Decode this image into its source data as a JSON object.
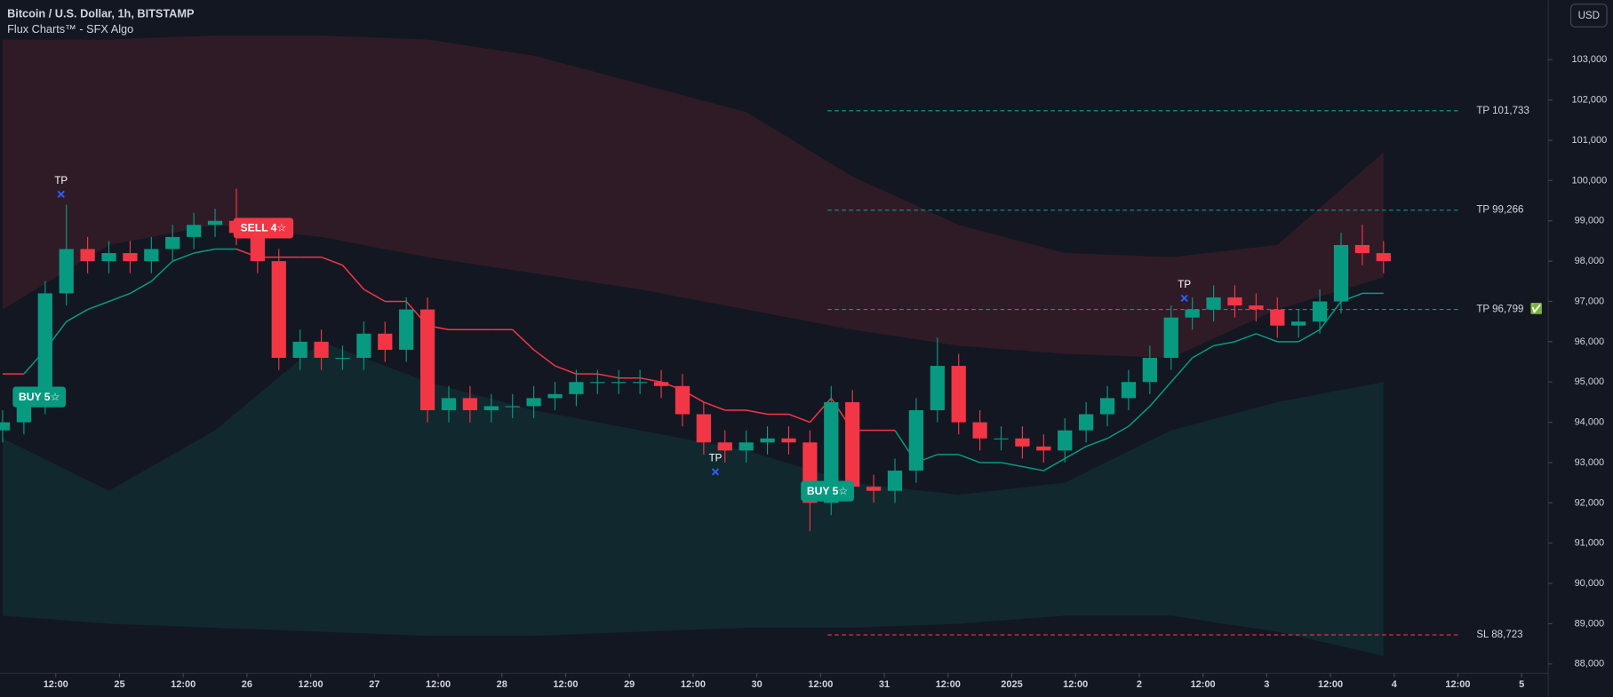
{
  "chart_data": {
    "type": "candlestick",
    "title": "Bitcoin / U.S. Dollar, 1h, BITSTAMP",
    "subtitle": "Flux Charts™ - SFX Algo",
    "currency": "USD",
    "up_color": "#089981",
    "down_color": "#f23645",
    "x": [
      -10,
      -6,
      -2,
      2,
      6,
      10,
      14,
      18,
      22,
      26,
      30,
      34,
      38,
      42,
      46,
      50,
      54,
      58,
      62,
      66,
      70,
      74,
      78,
      82,
      86,
      90,
      94,
      98,
      102,
      106,
      110,
      114,
      118,
      122,
      126,
      130,
      134,
      138,
      142,
      146,
      150,
      154,
      158,
      162,
      166,
      170,
      174,
      178,
      182,
      186,
      190,
      194,
      198,
      202,
      206,
      210,
      214,
      218,
      222,
      226,
      230,
      234,
      238,
      242,
      246,
      250
    ],
    "open": [
      93800,
      94000,
      94500,
      97200,
      98300,
      98000,
      98200,
      98000,
      98300,
      98600,
      98900,
      99000,
      98700,
      98000,
      95600,
      96000,
      95600,
      95600,
      96200,
      95800,
      96800,
      94300,
      94600,
      94300,
      94400,
      94400,
      94600,
      94700,
      95000,
      95000,
      95000,
      95000,
      94900,
      94200,
      93500,
      93300,
      93500,
      93600,
      93500,
      92000,
      94500,
      92400,
      92300,
      92800,
      94300,
      95400,
      94000,
      93600,
      93600,
      93400,
      93300,
      93800,
      94200,
      94600,
      95000,
      95600,
      96600,
      96800,
      97100,
      96900,
      96800,
      96400,
      96500,
      97000,
      98400,
      98200
    ],
    "high": [
      94300,
      94800,
      97500,
      99400,
      98600,
      98500,
      98500,
      98600,
      98900,
      99200,
      99300,
      99800,
      99000,
      98300,
      96300,
      96300,
      95900,
      96500,
      96500,
      97100,
      97100,
      94900,
      94900,
      94700,
      94700,
      94900,
      95000,
      95300,
      95300,
      95300,
      95300,
      95300,
      95200,
      94500,
      93800,
      93800,
      93900,
      93900,
      93800,
      94900,
      94800,
      92700,
      93100,
      94600,
      96100,
      95700,
      94300,
      93900,
      93900,
      93700,
      94100,
      94500,
      94900,
      95300,
      95900,
      96900,
      97100,
      97400,
      97400,
      97200,
      97100,
      96800,
      97300,
      98700,
      98900,
      98500
    ],
    "low": [
      93500,
      93700,
      94200,
      96900,
      97700,
      97700,
      97700,
      97700,
      98000,
      98300,
      98600,
      98400,
      97700,
      95300,
      95300,
      95300,
      95300,
      95300,
      95500,
      95500,
      94000,
      94000,
      94000,
      94000,
      94100,
      94100,
      94300,
      94400,
      94700,
      94700,
      94700,
      94600,
      93900,
      93200,
      93000,
      93000,
      93200,
      93200,
      91300,
      91700,
      92100,
      92000,
      92000,
      92500,
      94000,
      93700,
      93300,
      93300,
      93100,
      93000,
      93000,
      93500,
      93900,
      94300,
      94700,
      95300,
      96300,
      96500,
      96600,
      96500,
      96100,
      96100,
      96200,
      96700,
      97900,
      97700
    ],
    "close": [
      94000,
      94500,
      97200,
      98300,
      98000,
      98200,
      98000,
      98300,
      98600,
      98900,
      99000,
      98700,
      98000,
      95600,
      96000,
      95600,
      95600,
      96200,
      95800,
      96800,
      94300,
      94600,
      94300,
      94400,
      94400,
      94600,
      94700,
      95000,
      95000,
      95000,
      95000,
      94900,
      94200,
      93500,
      93300,
      93500,
      93600,
      93500,
      92000,
      94500,
      92400,
      92300,
      92800,
      94300,
      95400,
      94000,
      93600,
      93600,
      93400,
      93300,
      93800,
      94200,
      94600,
      95000,
      95600,
      96600,
      96800,
      97100,
      96900,
      96800,
      96400,
      96500,
      97000,
      98400,
      98200,
      98000
    ],
    "trail": [
      95200,
      95200,
      95800,
      96500,
      96800,
      97000,
      97200,
      97500,
      98000,
      98200,
      98300,
      98300,
      98100,
      98100,
      98100,
      98100,
      97900,
      97300,
      97000,
      97000,
      96400,
      96300,
      96300,
      96300,
      96300,
      95800,
      95400,
      95200,
      95200,
      95100,
      95100,
      95000,
      94800,
      94500,
      94300,
      94300,
      94200,
      94200,
      94000,
      94600,
      93800,
      93800,
      93800,
      93000,
      93200,
      93200,
      93000,
      93000,
      92900,
      92800,
      93100,
      93400,
      93600,
      93900,
      94400,
      95000,
      95600,
      95900,
      96000,
      96200,
      96000,
      96000,
      96300,
      97000,
      97200,
      97200
    ],
    "band_x": [
      -10,
      10,
      30,
      50,
      70,
      90,
      110,
      130,
      150,
      170,
      190,
      210,
      230,
      250
    ],
    "bands": [
      {
        "color": "#f23645",
        "upper": [
          103500,
          103500,
          103600,
          103600,
          103500,
          103100,
          102400,
          101700,
          100100,
          98900,
          98200,
          98100,
          98400,
          100700
        ],
        "lower": [
          96800,
          98400,
          98900,
          98600,
          98100,
          97700,
          97300,
          96800,
          96300,
          95900,
          95700,
          95600,
          96800,
          97600
        ]
      },
      {
        "color": "#089981",
        "upper": [
          93600,
          92300,
          93800,
          96000,
          95000,
          94300,
          93800,
          93300,
          92500,
          92200,
          92500,
          93800,
          94500,
          95000
        ],
        "lower": [
          89200,
          89000,
          88900,
          88800,
          88700,
          88700,
          88800,
          88900,
          88900,
          89000,
          89200,
          89200,
          88800,
          88200
        ]
      }
    ],
    "signals": [
      {
        "label": "BUY 5☆",
        "x": -3.1,
        "price": 94630,
        "color": "#089981"
      },
      {
        "label": "SELL 4☆",
        "x": 39.1,
        "price": 98820,
        "color": "#f23645"
      },
      {
        "label": "BUY 5☆",
        "x": 145.3,
        "price": 92290,
        "color": "#089981"
      }
    ],
    "tp_marks": [
      {
        "label": "TP",
        "x": 1,
        "price": 99660
      },
      {
        "label": "TP",
        "x": 124.2,
        "price": 92770
      },
      {
        "label": "TP",
        "x": 212.5,
        "price": 97080
      }
    ],
    "level_x": [
      145.3,
      264
    ],
    "levels": [
      {
        "label": "TP 101,733",
        "value": 101733,
        "color": "#089981"
      },
      {
        "label": "TP 99,266",
        "value": 99266,
        "color": "#089981"
      },
      {
        "label": "TP 96,799",
        "value": 96799,
        "color": "#089981",
        "mark": "✅"
      },
      {
        "label": "SL 88,723",
        "value": 88723,
        "color": "#f23645"
      }
    ],
    "xlim": [
      -10.5,
      281
    ],
    "ylim": [
      87770,
      104480
    ],
    "xticks": [
      {
        "value": 0,
        "label": "12:00"
      },
      {
        "value": 12,
        "label": "25"
      },
      {
        "value": 24,
        "label": "12:00"
      },
      {
        "value": 36,
        "label": "26"
      },
      {
        "value": 48,
        "label": "12:00"
      },
      {
        "value": 60,
        "label": "27"
      },
      {
        "value": 72,
        "label": "12:00"
      },
      {
        "value": 84,
        "label": "28"
      },
      {
        "value": 96,
        "label": "12:00"
      },
      {
        "value": 108,
        "label": "29"
      },
      {
        "value": 120,
        "label": "12:00"
      },
      {
        "value": 132,
        "label": "30"
      },
      {
        "value": 144,
        "label": "12:00"
      },
      {
        "value": 156,
        "label": "31"
      },
      {
        "value": 168,
        "label": "12:00"
      },
      {
        "value": 180,
        "label": "2025"
      },
      {
        "value": 192,
        "label": "12:00"
      },
      {
        "value": 204,
        "label": "2"
      },
      {
        "value": 216,
        "label": "12:00"
      },
      {
        "value": 228,
        "label": "3"
      },
      {
        "value": 240,
        "label": "12:00"
      },
      {
        "value": 252,
        "label": "4"
      },
      {
        "value": 264,
        "label": "12:00"
      },
      {
        "value": 276,
        "label": "5"
      }
    ],
    "yticks": [
      {
        "value": 88000,
        "label": "88,000"
      },
      {
        "value": 89000,
        "label": "89,000"
      },
      {
        "value": 90000,
        "label": "90,000"
      },
      {
        "value": 91000,
        "label": "91,000"
      },
      {
        "value": 92000,
        "label": "92,000"
      },
      {
        "value": 93000,
        "label": "93,000"
      },
      {
        "value": 94000,
        "label": "94,000"
      },
      {
        "value": 95000,
        "label": "95,000"
      },
      {
        "value": 96000,
        "label": "96,000"
      },
      {
        "value": 97000,
        "label": "97,000"
      },
      {
        "value": 98000,
        "label": "98,000"
      },
      {
        "value": 99000,
        "label": "99,000"
      },
      {
        "value": 100000,
        "label": "100,000"
      },
      {
        "value": 101000,
        "label": "101,000"
      },
      {
        "value": 102000,
        "label": "102,000"
      },
      {
        "value": 103000,
        "label": "103,000"
      }
    ]
  }
}
